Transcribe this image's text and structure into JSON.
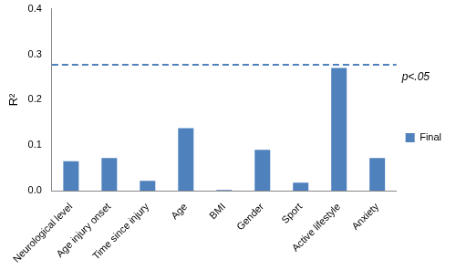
{
  "chart_data": {
    "type": "bar",
    "y_label": "R²",
    "categories": [
      "Neurological level",
      "Age injury onset",
      "Time since injury",
      "Age",
      "BMI",
      "Gender",
      "Sport",
      "Active lifestyle",
      "Anxiety"
    ],
    "series": [
      {
        "name": "Final",
        "color": "#4f81bd",
        "values": [
          0.065,
          0.072,
          0.022,
          0.138,
          0.002,
          0.09,
          0.018,
          0.27,
          0.072
        ]
      }
    ],
    "ylim": [
      0,
      0.4
    ],
    "yticks": [
      {
        "value": 0,
        "label": "0.0"
      },
      0.1,
      0.2,
      0.3,
      0.4
    ],
    "grid": false,
    "legend": "right",
    "reference_line": {
      "value": 0.277,
      "label": "p<.05",
      "line_style": "dashed",
      "color": "#4f81bd"
    }
  }
}
